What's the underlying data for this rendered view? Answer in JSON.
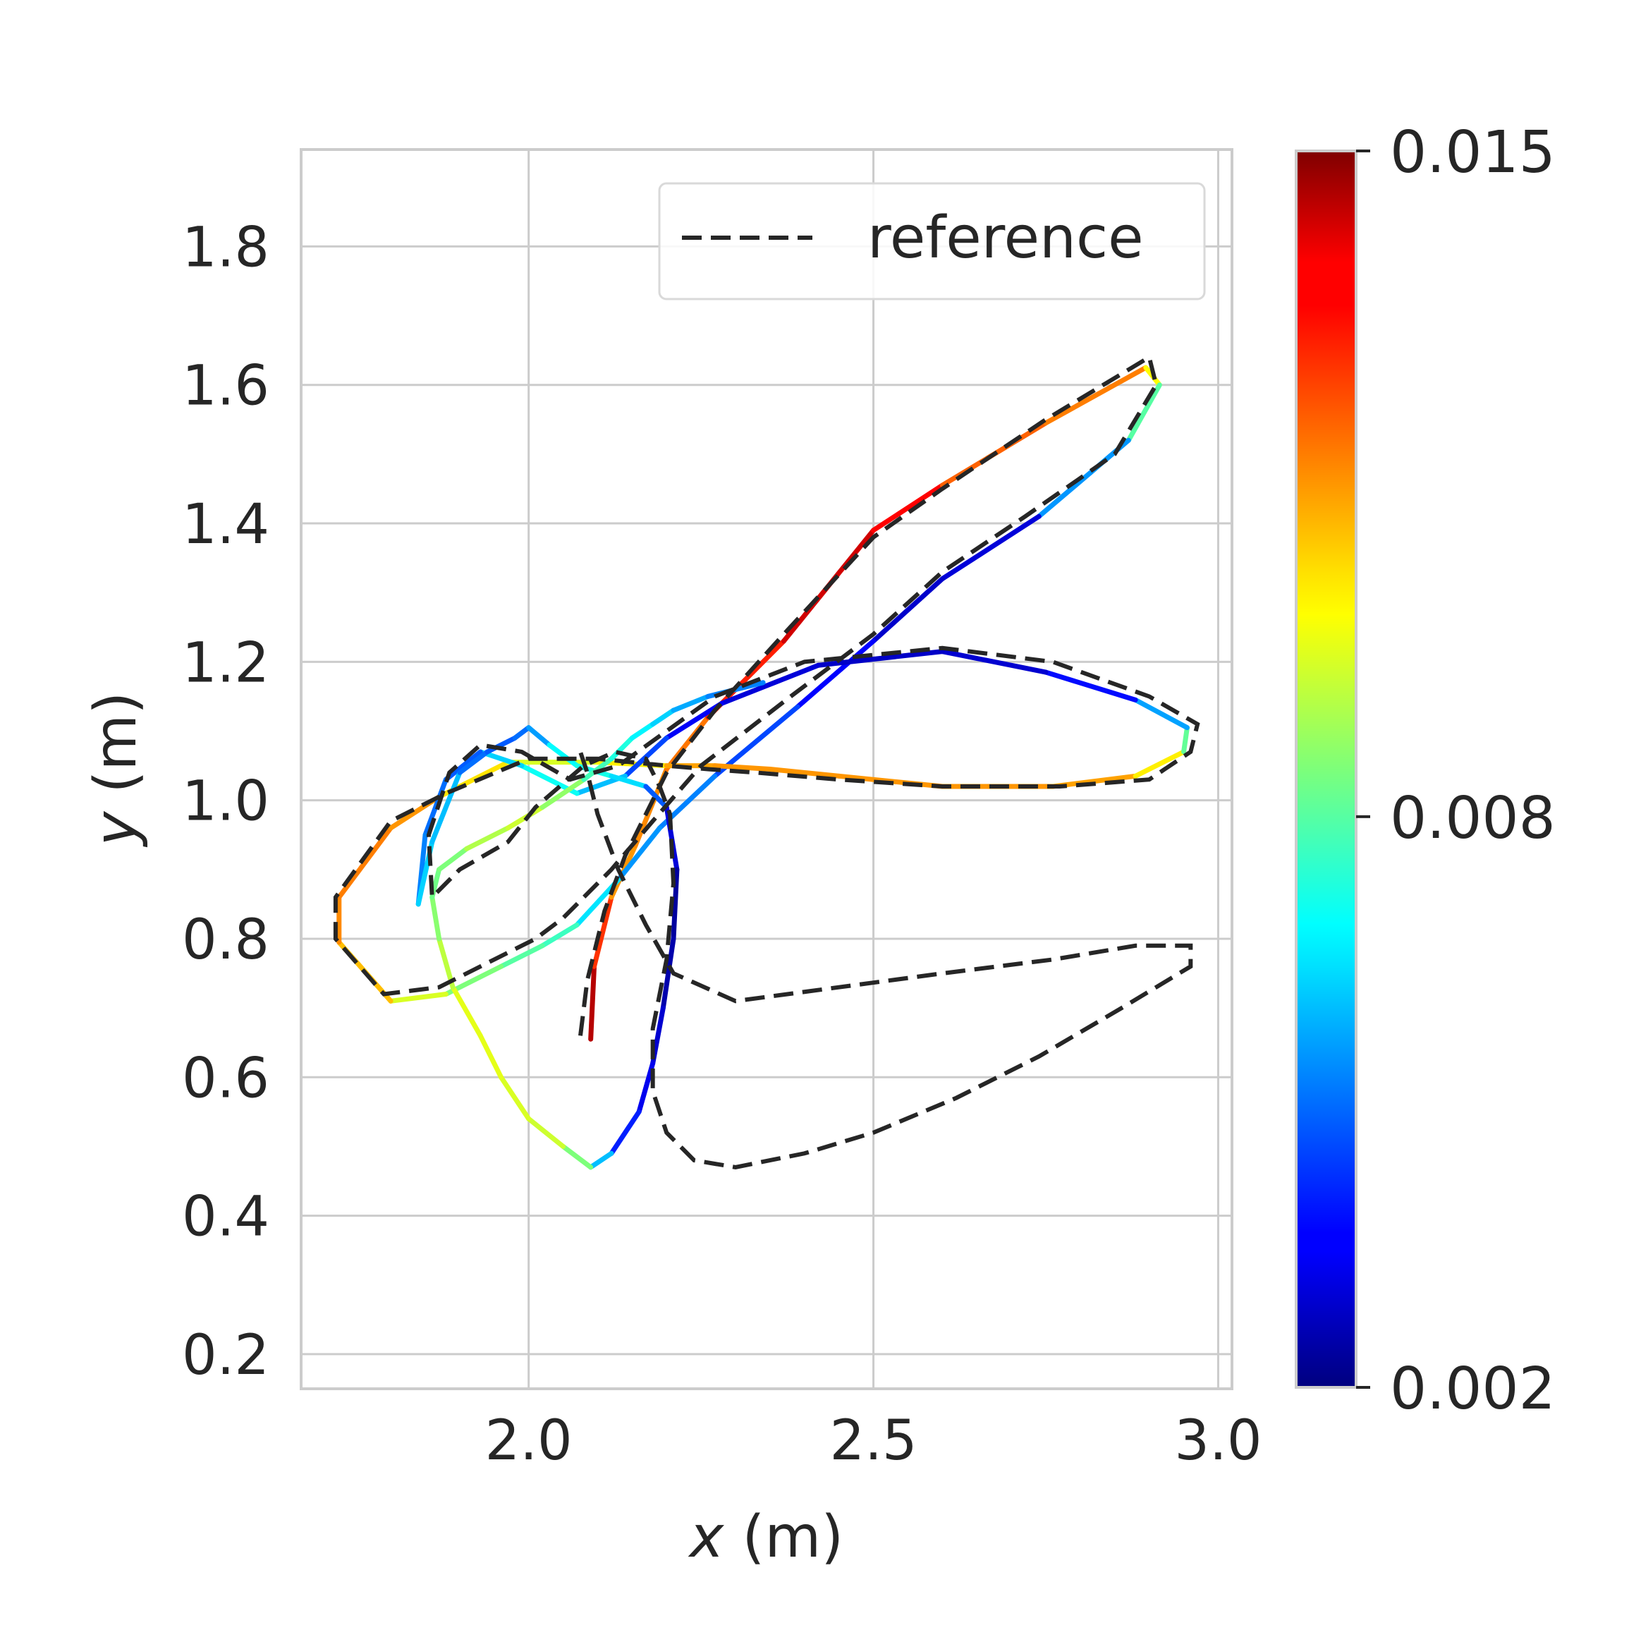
{
  "chart_data": {
    "type": "line",
    "xlabel_var": "x",
    "xlabel_unit": " (m)",
    "ylabel_var": "y",
    "ylabel_unit": " (m)",
    "xlim": [
      1.67,
      3.02
    ],
    "ylim": [
      0.15,
      1.94
    ],
    "xticks": [
      2.0,
      2.5,
      3.0
    ],
    "xtick_labels": [
      "2.0",
      "2.5",
      "3.0"
    ],
    "yticks": [
      0.2,
      0.4,
      0.6,
      0.8,
      1.0,
      1.2,
      1.4,
      1.6,
      1.8
    ],
    "ytick_labels": [
      "0.2",
      "0.4",
      "0.6",
      "0.8",
      "1.0",
      "1.2",
      "1.4",
      "1.6",
      "1.8"
    ],
    "grid": true,
    "legend": {
      "position": "top-right",
      "entries": [
        "reference"
      ]
    },
    "colorbar": {
      "colormap": "jet",
      "min": 0.002,
      "max": 0.015,
      "ticks": [
        0.002,
        0.008,
        0.015
      ],
      "tick_labels": [
        "0.002",
        "0.008",
        "0.015"
      ]
    },
    "reference": {
      "name": "reference",
      "style": "dashed",
      "color": "#262626",
      "x": [
        2.075,
        2.085,
        2.11,
        2.14,
        2.2,
        2.27,
        2.37,
        2.5,
        2.6,
        2.75,
        2.9,
        2.91,
        2.85,
        2.72,
        2.6,
        2.5,
        2.38,
        2.25,
        2.18,
        2.12,
        2.05,
        2.01,
        1.95,
        1.87,
        1.79,
        1.72,
        1.72,
        1.8,
        1.88,
        2.0,
        2.1,
        2.2,
        2.26,
        2.33,
        2.45,
        2.6,
        2.77,
        2.9,
        2.96,
        2.97,
        2.9,
        2.76,
        2.6,
        2.4,
        2.27,
        2.2,
        2.13,
        2.06,
        1.99,
        1.93,
        1.885,
        1.855,
        1.86,
        1.9,
        1.97,
        2.01,
        2.08,
        2.125,
        2.17,
        2.19,
        2.205,
        2.21,
        2.2,
        2.18,
        2.18,
        2.2,
        2.24,
        2.3,
        2.4,
        2.5,
        2.62,
        2.74,
        2.86,
        2.96,
        2.96,
        2.88,
        2.76,
        2.6,
        2.45,
        2.3,
        2.21,
        2.17,
        2.13,
        2.1,
        2.085,
        2.075
      ],
      "y": [
        0.66,
        0.74,
        0.84,
        0.92,
        1.04,
        1.13,
        1.24,
        1.38,
        1.45,
        1.55,
        1.64,
        1.6,
        1.5,
        1.41,
        1.33,
        1.24,
        1.15,
        1.05,
        0.97,
        0.9,
        0.83,
        0.8,
        0.77,
        0.73,
        0.72,
        0.8,
        0.86,
        0.97,
        1.01,
        1.06,
        1.06,
        1.05,
        1.045,
        1.04,
        1.03,
        1.02,
        1.02,
        1.03,
        1.07,
        1.11,
        1.15,
        1.2,
        1.22,
        1.2,
        1.15,
        1.1,
        1.05,
        1.03,
        1.07,
        1.08,
        1.04,
        0.95,
        0.86,
        0.9,
        0.94,
        0.99,
        1.05,
        1.07,
        1.06,
        1.02,
        0.98,
        0.88,
        0.77,
        0.67,
        0.58,
        0.52,
        0.48,
        0.47,
        0.49,
        0.52,
        0.57,
        0.63,
        0.7,
        0.76,
        0.79,
        0.79,
        0.77,
        0.75,
        0.73,
        0.71,
        0.75,
        0.82,
        0.9,
        0.98,
        1.04,
        1.07
      ]
    },
    "tracked": {
      "x": [
        2.09,
        2.095,
        2.12,
        2.155,
        2.2,
        2.26,
        2.37,
        2.5,
        2.6,
        2.75,
        2.895,
        2.915,
        2.87,
        2.74,
        2.6,
        2.5,
        2.39,
        2.27,
        2.19,
        2.13,
        2.07,
        2.02,
        1.96,
        1.88,
        1.8,
        1.725,
        1.725,
        1.8,
        1.87,
        1.97,
        2.1,
        2.2,
        2.27,
        2.35,
        2.45,
        2.6,
        2.76,
        2.88,
        2.95,
        2.955,
        2.88,
        2.75,
        2.6,
        2.42,
        2.28,
        2.2,
        2.14,
        2.07,
        1.99,
        1.93,
        1.88,
        1.85,
        1.84
      ],
      "y": [
        0.655,
        0.76,
        0.86,
        0.935,
        1.045,
        1.12,
        1.23,
        1.39,
        1.455,
        1.545,
        1.625,
        1.6,
        1.52,
        1.41,
        1.32,
        1.23,
        1.135,
        1.035,
        0.96,
        0.885,
        0.82,
        0.79,
        0.76,
        0.72,
        0.71,
        0.795,
        0.86,
        0.96,
        1.005,
        1.055,
        1.055,
        1.05,
        1.05,
        1.045,
        1.035,
        1.02,
        1.02,
        1.035,
        1.07,
        1.105,
        1.145,
        1.185,
        1.215,
        1.195,
        1.14,
        1.09,
        1.035,
        1.01,
        1.05,
        1.07,
        1.03,
        0.95,
        0.85
      ],
      "error": [
        0.015,
        0.014,
        0.0115,
        0.0115,
        0.0118,
        0.012,
        0.014,
        0.0145,
        0.0125,
        0.0118,
        0.0118,
        0.0085,
        0.0075,
        0.0035,
        0.0025,
        0.0032,
        0.004,
        0.005,
        0.0055,
        0.0055,
        0.0075,
        0.0078,
        0.0082,
        0.0088,
        0.0105,
        0.0115,
        0.0118,
        0.0118,
        0.0112,
        0.0098,
        0.0095,
        0.0112,
        0.0115,
        0.0115,
        0.0115,
        0.0115,
        0.0115,
        0.0112,
        0.0095,
        0.0068,
        0.0045,
        0.003,
        0.0028,
        0.0028,
        0.0032,
        0.0035,
        0.0055,
        0.0065,
        0.0075,
        0.005,
        0.0045,
        0.0055,
        0.005
      ]
    },
    "tracked_extra": {
      "x": [
        1.84,
        1.86,
        1.9,
        1.94,
        1.98,
        2.0,
        2.03,
        2.07,
        2.12,
        2.17,
        2.2,
        2.215,
        2.21,
        2.195,
        2.18,
        2.16,
        2.12,
        2.09,
        2.05,
        2.0,
        1.96,
        1.93,
        1.89,
        1.87,
        1.86,
        1.87,
        1.91,
        1.97,
        2.02,
        2.08,
        2.12,
        2.15,
        2.18,
        2.21,
        2.26,
        2.34
      ],
      "y": [
        0.85,
        0.94,
        1.04,
        1.07,
        1.09,
        1.105,
        1.08,
        1.05,
        1.035,
        1.02,
        0.99,
        0.9,
        0.8,
        0.7,
        0.62,
        0.55,
        0.49,
        0.47,
        0.5,
        0.54,
        0.6,
        0.66,
        0.73,
        0.8,
        0.86,
        0.9,
        0.93,
        0.96,
        0.99,
        1.03,
        1.06,
        1.09,
        1.11,
        1.13,
        1.15,
        1.17
      ],
      "error": [
        0.006,
        0.0065,
        0.0055,
        0.0045,
        0.005,
        0.005,
        0.0062,
        0.0075,
        0.0068,
        0.006,
        0.0035,
        0.0025,
        0.0022,
        0.0028,
        0.003,
        0.0035,
        0.0045,
        0.0075,
        0.0095,
        0.0095,
        0.0098,
        0.0098,
        0.0098,
        0.0088,
        0.0085,
        0.0082,
        0.0088,
        0.0095,
        0.0095,
        0.008,
        0.0075,
        0.007,
        0.0065,
        0.006,
        0.0055,
        0.005
      ]
    }
  }
}
